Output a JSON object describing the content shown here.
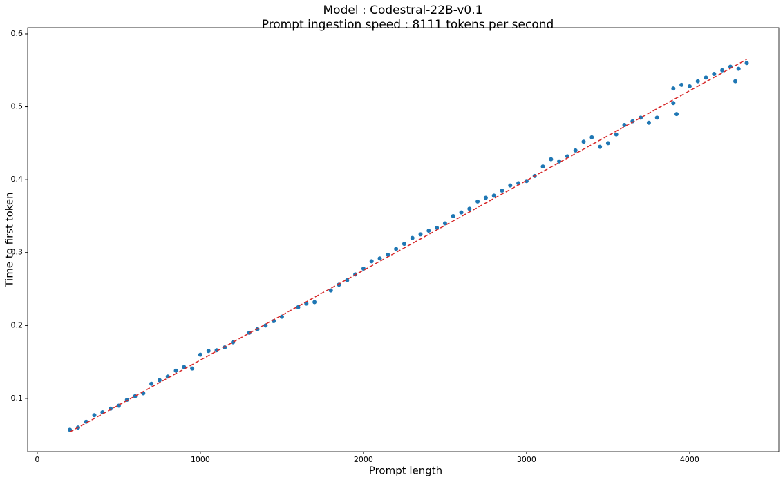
{
  "chart_data": {
    "type": "scatter",
    "title": "Model : Codestral-22B-v0.1",
    "subtitle": "Prompt ingestion speed : 8111 tokens per second",
    "x_label": "Prompt length",
    "y_label": "Time to first token",
    "xlim": [
      -59,
      4547
    ],
    "ylim": [
      0.027,
      0.6085
    ],
    "xticks": [
      0,
      1000,
      2000,
      3000,
      4000
    ],
    "yticks": [
      0.1,
      0.2,
      0.3,
      0.4,
      0.5,
      0.6
    ],
    "color": "#1f77b4",
    "x": [
      200,
      250,
      300,
      350,
      400,
      450,
      500,
      550,
      600,
      650,
      700,
      750,
      800,
      850,
      900,
      950,
      1000,
      1050,
      1100,
      1150,
      1200,
      1300,
      1350,
      1400,
      1450,
      1500,
      1600,
      1650,
      1700,
      1800,
      1850,
      1900,
      1950,
      2000,
      2050,
      2100,
      2150,
      2200,
      2250,
      2300,
      2350,
      2400,
      2450,
      2500,
      2550,
      2600,
      2650,
      2700,
      2750,
      2800,
      2850,
      2900,
      2950,
      3000,
      3050,
      3100,
      3150,
      3200,
      3250,
      3300,
      3350,
      3400,
      3450,
      3500,
      3550,
      3600,
      3650,
      3700,
      3750,
      3800,
      3900,
      3950,
      4000,
      4050,
      4100,
      4150,
      4200,
      4250,
      4300,
      4350,
      3920,
      4280,
      3900
    ],
    "values": [
      0.057,
      0.06,
      0.068,
      0.077,
      0.081,
      0.086,
      0.09,
      0.098,
      0.103,
      0.107,
      0.12,
      0.125,
      0.13,
      0.138,
      0.143,
      0.141,
      0.16,
      0.165,
      0.166,
      0.17,
      0.177,
      0.19,
      0.195,
      0.2,
      0.206,
      0.212,
      0.225,
      0.23,
      0.232,
      0.248,
      0.256,
      0.262,
      0.27,
      0.278,
      0.288,
      0.292,
      0.297,
      0.305,
      0.312,
      0.32,
      0.325,
      0.33,
      0.334,
      0.34,
      0.35,
      0.355,
      0.36,
      0.37,
      0.375,
      0.378,
      0.385,
      0.392,
      0.395,
      0.398,
      0.405,
      0.418,
      0.428,
      0.425,
      0.432,
      0.44,
      0.452,
      0.458,
      0.445,
      0.45,
      0.462,
      0.475,
      0.48,
      0.485,
      0.478,
      0.485,
      0.525,
      0.53,
      0.528,
      0.535,
      0.54,
      0.545,
      0.55,
      0.555,
      0.552,
      0.56,
      0.49,
      0.535,
      0.505
    ],
    "fit_line": {
      "x": [
        200,
        4350
      ],
      "values": [
        0.054,
        0.565
      ],
      "color": "#d62728",
      "dashed": true
    }
  }
}
